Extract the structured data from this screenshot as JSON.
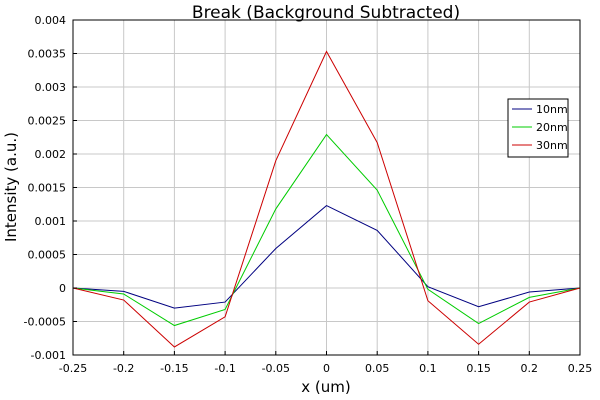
{
  "chart_data": {
    "type": "line",
    "title": "Break (Background Subtracted)",
    "xlabel": "x (um)",
    "ylabel": "Intensity (a.u.)",
    "xlim": [
      -0.25,
      0.25
    ],
    "ylim": [
      -0.001,
      0.004
    ],
    "grid": true,
    "legend_position": "top-right",
    "x_ticks": [
      "-0.25",
      "-0.2",
      "-0.15",
      "-0.1",
      "-0.05",
      "0",
      "0.05",
      "0.1",
      "0.15",
      "0.2",
      "0.25"
    ],
    "y_ticks": [
      "-0.001",
      "-0.0005",
      "0",
      "0.0005",
      "0.001",
      "0.0015",
      "0.002",
      "0.0025",
      "0.003",
      "0.0035",
      "0.004"
    ],
    "x": [
      -0.25,
      -0.2,
      -0.15,
      -0.1,
      -0.05,
      0,
      0.05,
      0.1,
      0.15,
      0.2,
      0.25
    ],
    "series": [
      {
        "name": "10nm",
        "color": "#000080",
        "values": [
          0.0,
          -5e-05,
          -0.0003,
          -0.00021,
          0.00059,
          0.00123,
          0.00086,
          2e-05,
          -0.00028,
          -6e-05,
          0.0
        ]
      },
      {
        "name": "20nm",
        "color": "#00cc00",
        "values": [
          0.0,
          -9e-05,
          -0.00056,
          -0.00032,
          0.00118,
          0.00229,
          0.00146,
          -2e-05,
          -0.00053,
          -0.00014,
          0.0
        ]
      },
      {
        "name": "30nm",
        "color": "#cc0000",
        "values": [
          0.0,
          -0.00018,
          -0.00088,
          -0.00043,
          0.0019,
          0.00353,
          0.00217,
          -0.00019,
          -0.00084,
          -0.00021,
          0.0
        ]
      }
    ]
  }
}
